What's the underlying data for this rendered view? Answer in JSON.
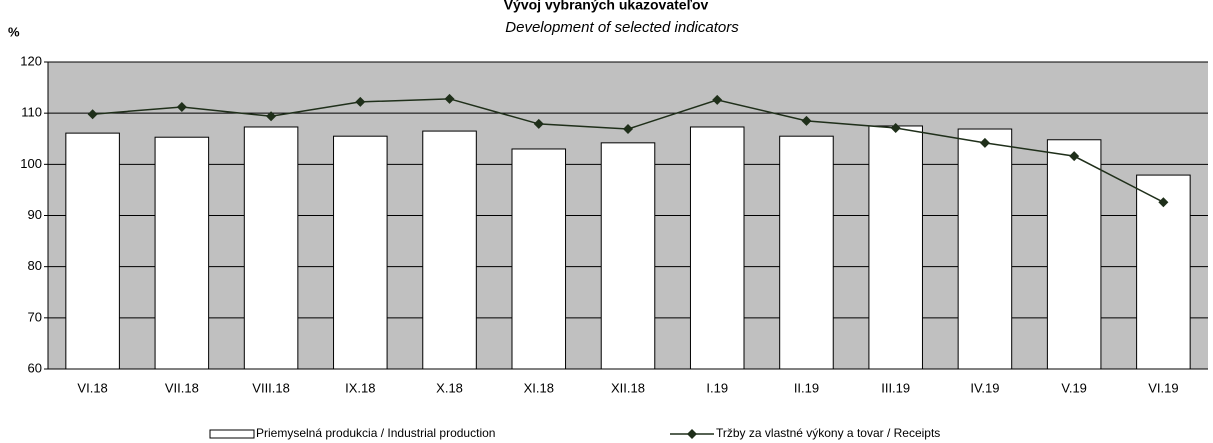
{
  "chart_data": {
    "type": "combo",
    "title": "Vývoj vybraných ukazovateľov",
    "subtitle": "Development of selected indicators",
    "y_label": "%",
    "categories": [
      "VI.18",
      "VII.18",
      "VIII.18",
      "IX.18",
      "X.18",
      "XI.18",
      "XII.18",
      "I.19",
      "II.19",
      "III.19",
      "IV.19",
      "V.19",
      "VI.19"
    ],
    "series": [
      {
        "name": "Priemyselná produkcia / Industrial production",
        "type": "bar",
        "color": "#ffffff",
        "values": [
          106.1,
          105.3,
          107.3,
          105.5,
          106.5,
          103.0,
          104.2,
          107.3,
          105.5,
          107.5,
          106.9,
          104.8,
          97.9
        ]
      },
      {
        "name": "Tržby za vlastné výkony a tovar / Receipts",
        "type": "line",
        "color": "#1f2f1a",
        "values": [
          109.8,
          111.2,
          109.4,
          112.2,
          112.8,
          107.9,
          106.9,
          112.6,
          108.5,
          107.1,
          104.2,
          101.6,
          92.6
        ]
      }
    ],
    "ylim": [
      60,
      120
    ],
    "yticks": [
      60,
      70,
      80,
      90,
      100,
      110,
      120
    ],
    "grid": true,
    "plot_background": "#c0c0c0",
    "legend": "bottom"
  }
}
